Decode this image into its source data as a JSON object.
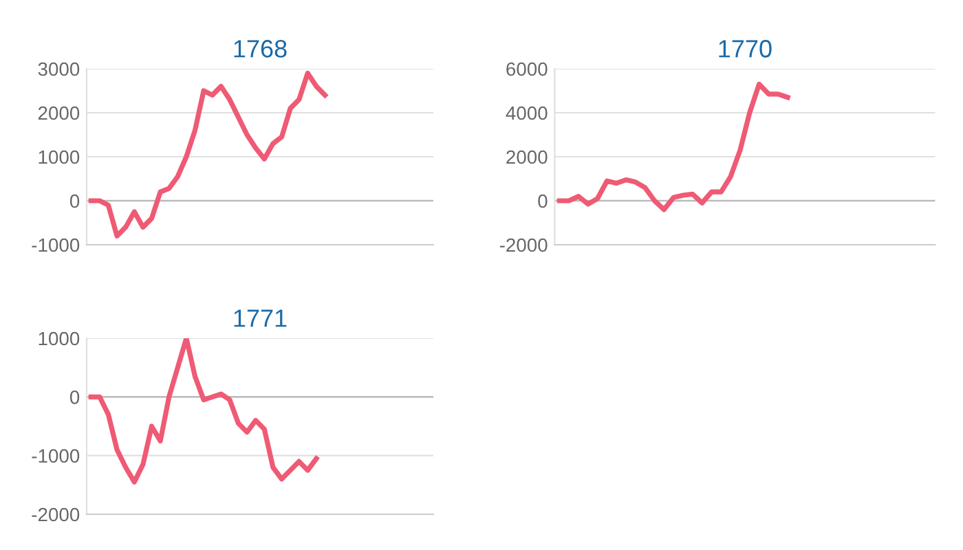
{
  "chart_data": [
    {
      "type": "line",
      "title": "1768",
      "categories": [
        null,
        null,
        null,
        null,
        null,
        null,
        null,
        null,
        null,
        null,
        null,
        null,
        null,
        null,
        null,
        null,
        null,
        null,
        null,
        null,
        null,
        null,
        null,
        null,
        null,
        null,
        null,
        null,
        null,
        null,
        null,
        null,
        null,
        null,
        null,
        null,
        null,
        null,
        null,
        null
      ],
      "series": [
        {
          "color": "#ef5a74",
          "values": [
            0,
            0,
            -100,
            -800,
            -600,
            -250,
            -600,
            -400,
            200,
            280,
            550,
            1000,
            1600,
            2500,
            2400,
            2600,
            2300,
            1900,
            1500,
            1200,
            950,
            1300,
            1450,
            2100,
            2300,
            2900,
            2600,
            2400,
            null,
            null,
            null,
            null,
            null,
            null,
            null,
            null,
            null,
            null,
            null,
            null
          ]
        }
      ],
      "ylim": [
        -1000,
        3000
      ],
      "yticks": [
        -1000,
        0,
        1000,
        2000,
        3000
      ],
      "grid": "y",
      "tick_labels": "y",
      "marker": "none",
      "line_style": "solid"
    },
    {
      "type": "line",
      "title": "1770",
      "categories": [
        null,
        null,
        null,
        null,
        null,
        null,
        null,
        null,
        null,
        null,
        null,
        null,
        null,
        null,
        null,
        null,
        null,
        null,
        null,
        null,
        null,
        null,
        null,
        null,
        null,
        null,
        null,
        null,
        null,
        null,
        null,
        null,
        null,
        null,
        null,
        null,
        null,
        null,
        null,
        null
      ],
      "series": [
        {
          "color": "#ef5a74",
          "values": [
            0,
            0,
            200,
            -150,
            100,
            900,
            800,
            950,
            850,
            600,
            0,
            -400,
            150,
            250,
            300,
            -100,
            400,
            400,
            1100,
            2300,
            4000,
            5300,
            4850,
            4850,
            4700,
            null,
            null,
            null,
            null,
            null,
            null,
            null,
            null,
            null,
            null,
            null,
            null,
            null,
            null,
            null
          ]
        }
      ],
      "ylim": [
        -2000,
        6000
      ],
      "yticks": [
        -2000,
        0,
        2000,
        4000,
        6000
      ],
      "grid": "y",
      "tick_labels": "y",
      "marker": "none",
      "line_style": "solid"
    },
    {
      "type": "line",
      "title": "1771",
      "categories": [
        null,
        null,
        null,
        null,
        null,
        null,
        null,
        null,
        null,
        null,
        null,
        null,
        null,
        null,
        null,
        null,
        null,
        null,
        null,
        null,
        null,
        null,
        null,
        null,
        null,
        null,
        null,
        null,
        null,
        null,
        null,
        null,
        null,
        null,
        null,
        null,
        null,
        null,
        null,
        null
      ],
      "series": [
        {
          "color": "#ef5a74",
          "values": [
            0,
            0,
            -300,
            -900,
            -1200,
            -1450,
            -1150,
            -500,
            -750,
            0,
            500,
            1000,
            350,
            -50,
            0,
            50,
            -50,
            -450,
            -600,
            -400,
            -550,
            -1200,
            -1400,
            -1250,
            -1100,
            -1250,
            -1050,
            null,
            null,
            null,
            null,
            null,
            null,
            null,
            null,
            null,
            null,
            null,
            null,
            null
          ]
        }
      ],
      "ylim": [
        -2000,
        1000
      ],
      "yticks": [
        -2000,
        -1000,
        0,
        1000
      ],
      "grid": "y",
      "tick_labels": "y",
      "marker": "none",
      "line_style": "solid"
    }
  ]
}
